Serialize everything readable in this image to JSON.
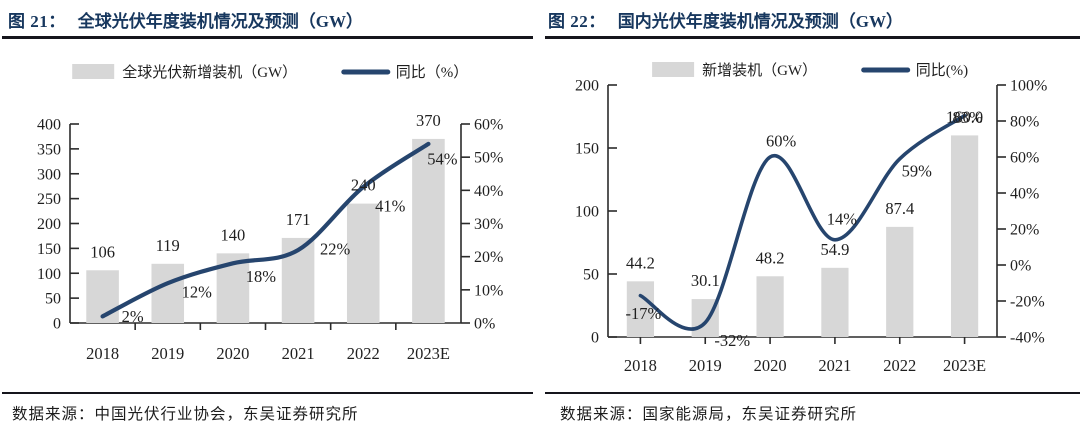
{
  "panels": [
    {
      "figure_no": "图 21：",
      "title": "全球光伏年度装机情况及预测（GW）",
      "source": "数据来源：中国光伏行业协会，东吴证券研究所"
    },
    {
      "figure_no": "图 22：",
      "title": "国内光伏年度装机情况及预测（GW）",
      "source": "数据来源：国家能源局，东吴证券研究所"
    }
  ],
  "colors": {
    "title_navy": "#17375e",
    "bar_gray": "#d7d7d7",
    "line_navy": "#26456e",
    "axis": "#2b2b2b",
    "label": "#1f1f1f",
    "rule": "#15151c"
  },
  "chart_data": [
    {
      "type": "bar+line",
      "title": "全球光伏年度装机情况及预测（GW）",
      "categories": [
        "2018",
        "2019",
        "2020",
        "2021",
        "2022",
        "2023E"
      ],
      "series": [
        {
          "name": "全球光伏新增装机（GW）",
          "type": "bar",
          "axis": "left",
          "values": [
            106,
            119,
            140,
            171,
            240,
            370
          ],
          "labels": [
            "106",
            "119",
            "140",
            "171",
            "240",
            "370"
          ]
        },
        {
          "name": "同比（%）",
          "type": "line",
          "axis": "right",
          "values": [
            2,
            12,
            18,
            22,
            41,
            54
          ],
          "labels": [
            "2%",
            "12%",
            "18%",
            "22%",
            "41%",
            "54%"
          ],
          "label_offsets": [
            [
              30,
              0
            ],
            [
              29,
              9
            ],
            [
              28,
              13
            ],
            [
              37,
              -1
            ],
            [
              27,
              19
            ],
            [
              14,
              15
            ]
          ]
        }
      ],
      "left_axis": {
        "min": 0,
        "max": 400,
        "step": 50,
        "ticks": [
          "0",
          "50",
          "100",
          "150",
          "200",
          "250",
          "300",
          "350",
          "400"
        ]
      },
      "right_axis": {
        "min": 0,
        "max": 60,
        "step": 10,
        "ticks": [
          "0%",
          "10%",
          "20%",
          "30%",
          "40%",
          "50%",
          "60%"
        ]
      },
      "legend_position": "top",
      "grid": false,
      "x_tick_style": "between"
    },
    {
      "type": "bar+line",
      "title": "国内光伏年度装机情况及预测（GW）",
      "categories": [
        "2018",
        "2019",
        "2020",
        "2021",
        "2022",
        "2023E"
      ],
      "series": [
        {
          "name": "新增装机（GW）",
          "type": "bar",
          "axis": "left",
          "values": [
            44.2,
            30.1,
            48.2,
            54.9,
            87.4,
            160.0
          ],
          "labels": [
            "44.2",
            "30.1",
            "48.2",
            "54.9",
            "87.4",
            "160.0"
          ]
        },
        {
          "name": "同比(%)",
          "type": "line",
          "axis": "right",
          "values": [
            -17,
            -32,
            60,
            14,
            59,
            83
          ],
          "labels": [
            "-17%",
            "-32%",
            "60%",
            "14%",
            "59%",
            "83%"
          ],
          "label_offsets": [
            [
              3,
              18
            ],
            [
              27,
              18
            ],
            [
              11,
              -16
            ],
            [
              7,
              -21
            ],
            [
              17,
              12
            ],
            [
              3,
              2
            ]
          ]
        }
      ],
      "left_axis": {
        "min": 0,
        "max": 200,
        "step": 50,
        "ticks": [
          "0",
          "50",
          "100",
          "150",
          "200"
        ]
      },
      "right_axis": {
        "min": -40,
        "max": 100,
        "step": 20,
        "ticks": [
          "-40%",
          "-20%",
          "0%",
          "20%",
          "40%",
          "60%",
          "80%",
          "100%"
        ]
      },
      "legend_position": "top",
      "grid": false,
      "x_tick_style": "on"
    }
  ]
}
